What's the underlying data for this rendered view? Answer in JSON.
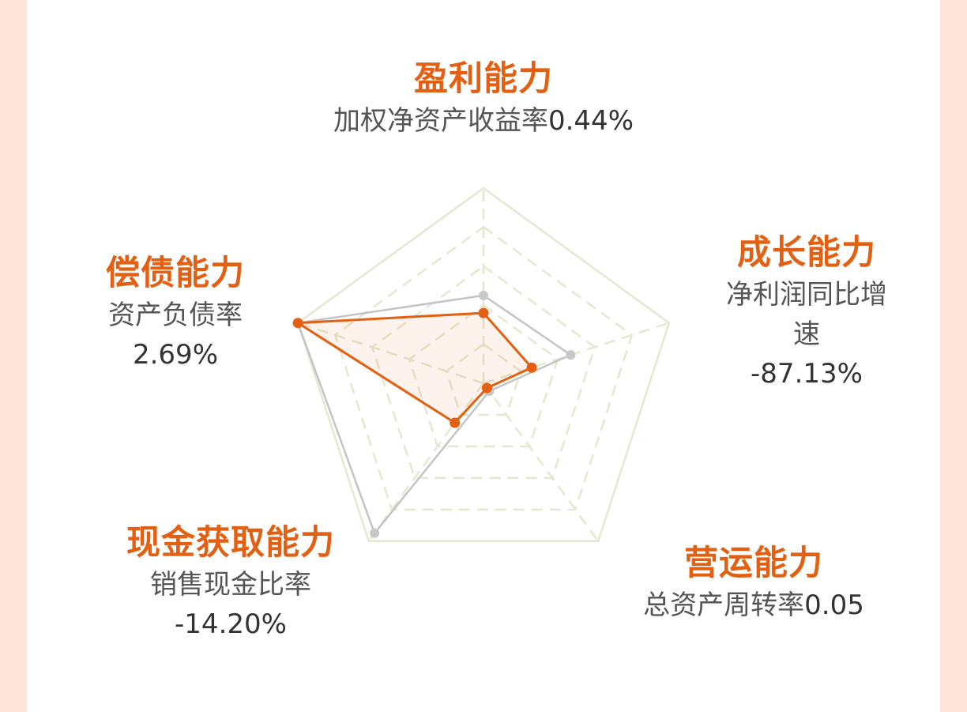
{
  "colors": {
    "page_bg": "#fde3da",
    "card_bg": "#ffffff",
    "accent": "#e35f12",
    "reference_line": "#c4c4c4",
    "grid": "#e8e6cf"
  },
  "chart_data": {
    "type": "radar",
    "axes": [
      "盈利能力",
      "成长能力",
      "营运能力",
      "现金获取能力",
      "偿债能力"
    ],
    "series": [
      {
        "color": "#e35f12",
        "values": [
          0.36,
          0.26,
          0.03,
          0.25,
          1.0
        ]
      },
      {
        "color": "#c4c4c4",
        "values": [
          0.45,
          0.47,
          0.05,
          0.95,
          1.0
        ]
      }
    ],
    "rings": 5,
    "grid": true
  },
  "labels": {
    "profit": {
      "title": "盈利能力",
      "metric": "加权净资产收益率",
      "value": "0.44%"
    },
    "growth": {
      "title": "成长能力",
      "metric_line1": "净利润同比增",
      "metric_line2": "速",
      "value": "-87.13%"
    },
    "operation": {
      "title": "营运能力",
      "metric": "总资产周转率",
      "value": "0.05"
    },
    "cash": {
      "title": "现金获取能力",
      "metric": "销售现金比率",
      "value": "-14.20%"
    },
    "solvency": {
      "title": "偿债能力",
      "metric": "资产负债率",
      "value": "2.69%"
    }
  }
}
